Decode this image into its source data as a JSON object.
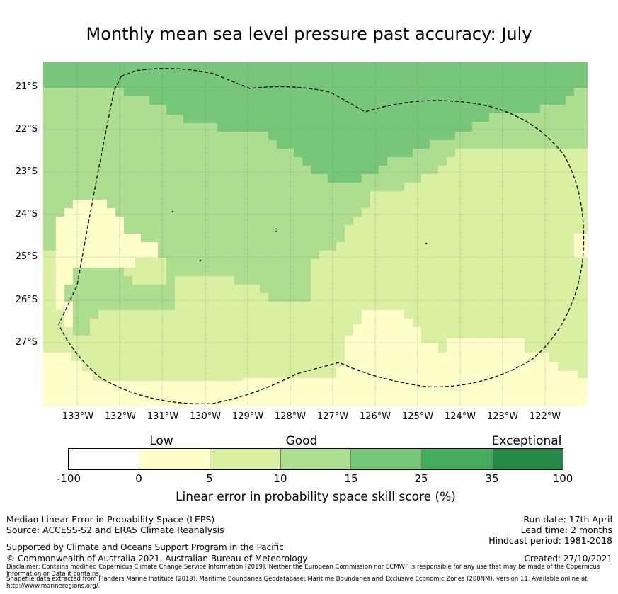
{
  "title": "Monthly mean sea level pressure past accuracy: July",
  "map": {
    "lat_labels": [
      "21°S",
      "22°S",
      "23°S",
      "24°S",
      "25°S",
      "26°S",
      "27°S"
    ],
    "lon_labels": [
      "133°W",
      "132°W",
      "131°W",
      "130°W",
      "129°W",
      "128°W",
      "127°W",
      "126°W",
      "125°W",
      "124°W",
      "123°W",
      "122°W"
    ],
    "colors": {
      "exceptional": "#258a49",
      "very_good": "#43ad5c",
      "good_high": "#78c679",
      "good": "#addd8e",
      "fair": "#d9f0a3",
      "low": "#ffffcc",
      "none": "#ffffff"
    }
  },
  "legend": {
    "categories": [
      "Low",
      "Good",
      "Exceptional"
    ],
    "ticks": [
      "-100",
      "0",
      "5",
      "10",
      "15",
      "25",
      "35",
      "100"
    ],
    "colors": [
      "#ffffff",
      "#ffffcc",
      "#d9f0a3",
      "#addd8e",
      "#78c679",
      "#43ad5c",
      "#258a49"
    ],
    "label": "Linear error in probability space skill score (%)"
  },
  "footer": {
    "left": [
      "Median Linear Error in Probability Space (LEPS)",
      "Source: ACCESS-S2 and ERA5 Climate Reanalysis",
      "Supported by Climate and Oceans Support Program in the Pacific",
      "© Commonwealth of Australia 2021, Australian Bureau of Meteorology"
    ],
    "right": [
      "Run date: 17th April",
      "Lead time: 2 months",
      "Hindcast period: 1981-2018",
      "Created: 27/10/2021"
    ],
    "disclaimer": "Disclaimer: Contains modified Copernicus Climate Change Service Information [2019]. Neither the European Commission nor ECMWF is responsible for any use that may be made of the Copernicus Information or Data it contains.",
    "shapefile": "Shapefile data extracted from Flanders Marine Institute (2019), Maritime Boundaries Geodatabase: Maritime Boundaries and Exclusive Economic Zones (200NM), version 11. Available online at http://www.marineregions.org/."
  }
}
